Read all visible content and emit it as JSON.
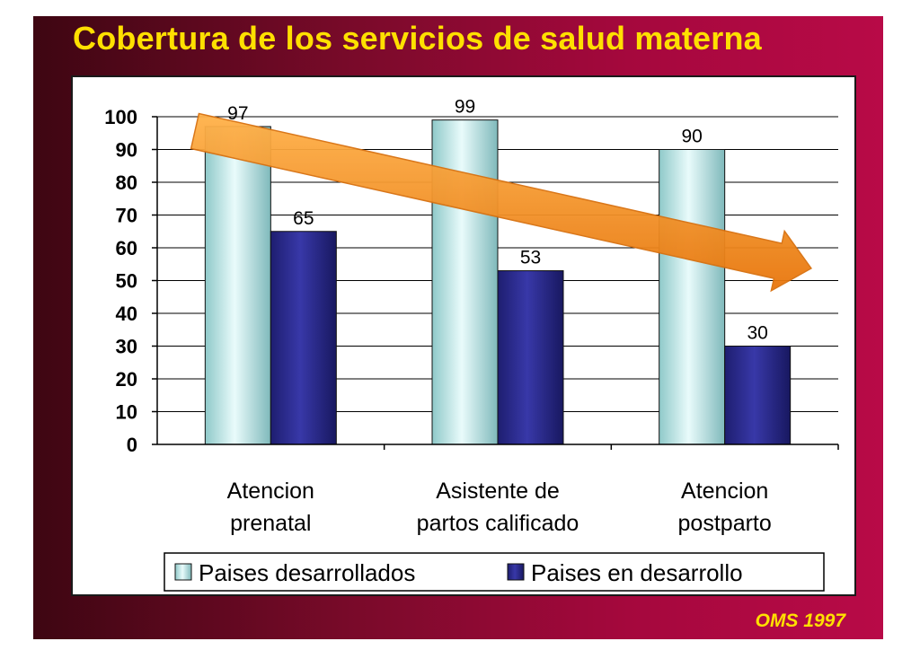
{
  "slide": {
    "title": "Cobertura de los servicios de salud materna",
    "source": "OMS 1997"
  },
  "colors": {
    "background": "#8a0a33",
    "title": "#ffe000",
    "series_light": "#b8e4e4",
    "series_dark": "#2a2a8c",
    "arrow": "#f5921e"
  },
  "chart_data": {
    "type": "bar",
    "title": "Cobertura de los servicios de salud materna",
    "categories": [
      [
        "Atencion",
        "prenatal"
      ],
      [
        "Asistente de",
        "partos calificado"
      ],
      [
        "Atencion",
        "postparto"
      ]
    ],
    "series": [
      {
        "name": "Paises desarrollados",
        "values": [
          97,
          99,
          90
        ],
        "color": "#b8e4e4"
      },
      {
        "name": "Paises en desarrollo",
        "values": [
          65,
          53,
          30
        ],
        "color": "#2a2a8c"
      }
    ],
    "ylim": [
      0,
      100
    ],
    "yticks": [
      0,
      10,
      20,
      30,
      40,
      50,
      60,
      70,
      80,
      90,
      100
    ],
    "grid": true,
    "legend_position": "bottom",
    "annotation": "downward-trend-arrow"
  }
}
